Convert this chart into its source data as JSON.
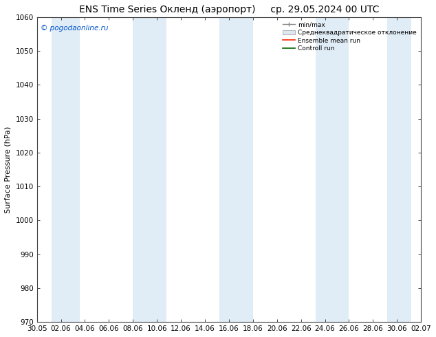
{
  "title_left": "ENS Time Series Окленд (аэропорт)",
  "title_right": "ср. 29.05.2024 00 UTC",
  "ylabel": "Surface Pressure (hPa)",
  "watermark": "© pogodaonline.ru",
  "ylim": [
    970,
    1060
  ],
  "yticks": [
    970,
    980,
    990,
    1000,
    1010,
    1020,
    1030,
    1040,
    1050,
    1060
  ],
  "xtick_labels": [
    "30.05",
    "02.06",
    "04.06",
    "06.06",
    "08.06",
    "10.06",
    "12.06",
    "14.06",
    "16.06",
    "18.06",
    "20.06",
    "22.06",
    "24.06",
    "26.06",
    "28.06",
    "30.06",
    "02.07"
  ],
  "band_color": "#cce0f0",
  "band_alpha": 0.6,
  "bg_color": "#ffffff",
  "legend_labels": [
    "min/max",
    "Среднеквадратическое отклонение",
    "Ensemble mean run",
    "Controll run"
  ],
  "title_fontsize": 10,
  "axis_fontsize": 7.5,
  "watermark_fontsize": 7.5,
  "band_positions": [
    1,
    2,
    5,
    6,
    9,
    10,
    13,
    14
  ]
}
